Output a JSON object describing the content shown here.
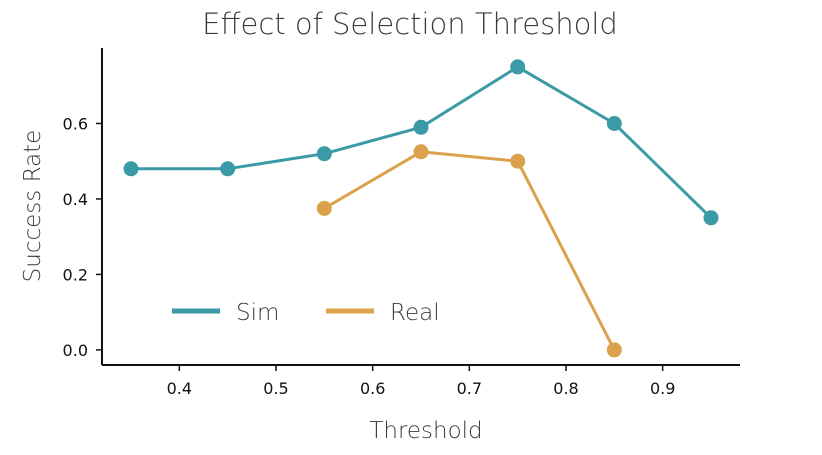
{
  "chart_data": {
    "type": "line",
    "title": "Effect of Selection Threshold",
    "xlabel": "Threshold",
    "ylabel": "Success Rate",
    "xlim": [
      0.32,
      0.98
    ],
    "ylim": [
      -0.04,
      0.8
    ],
    "xticks": [
      "0.4",
      "0.5",
      "0.6",
      "0.7",
      "0.8",
      "0.9"
    ],
    "yticks": [
      "0.0",
      "0.2",
      "0.4",
      "0.6"
    ],
    "grid": false,
    "legend_position": "bottom-left",
    "series": [
      {
        "name": "Sim",
        "color": "#3a9aa5",
        "points": [
          [
            0.35,
            0.48
          ],
          [
            0.45,
            0.48
          ],
          [
            0.55,
            0.52
          ],
          [
            0.65,
            0.59
          ],
          [
            0.75,
            0.75
          ],
          [
            0.85,
            0.6
          ],
          [
            0.95,
            0.35
          ]
        ]
      },
      {
        "name": "Real",
        "color": "#dba24b",
        "points": [
          [
            0.55,
            0.375
          ],
          [
            0.65,
            0.525
          ],
          [
            0.75,
            0.5
          ],
          [
            0.85,
            0.0
          ]
        ]
      }
    ]
  }
}
